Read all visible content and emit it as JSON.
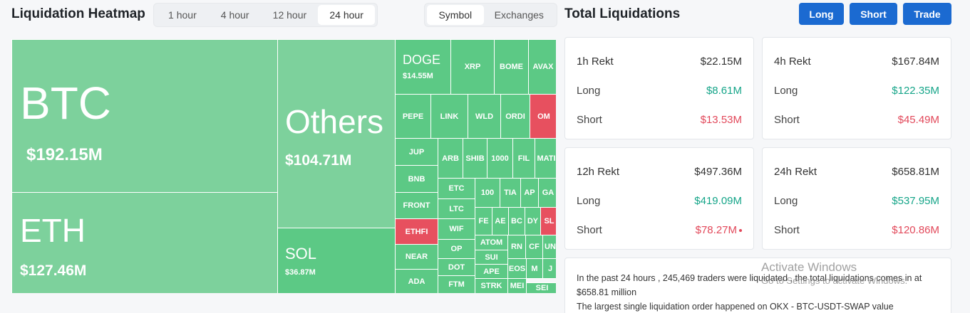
{
  "header": {
    "title": "Liquidation Heatmap",
    "time_tabs": [
      "1 hour",
      "4 hour",
      "12 hour",
      "24 hour"
    ],
    "active_time_tab": "24 hour",
    "group_tabs": [
      "Symbol",
      "Exchanges"
    ]
  },
  "heatmap": {
    "btc": {
      "name": "BTC",
      "value": "$192.15M"
    },
    "eth": {
      "name": "ETH",
      "value": "$127.46M"
    },
    "others": {
      "name": "Others",
      "value": "$104.71M"
    },
    "sol": {
      "name": "SOL",
      "value": "$36.87M"
    },
    "doge": {
      "name": "DOGE",
      "value": "$14.55M"
    },
    "small_labels": [
      "XRP",
      "BOME",
      "AVAX",
      "PEPE",
      "LINK",
      "WLD",
      "ORDI",
      "OM",
      "JUP",
      "ARB",
      "SHIB",
      "1000",
      "FIL",
      "MATI",
      "BNB",
      "ETC",
      "100",
      "TIA",
      "AP",
      "GA",
      "FRONT",
      "LTC",
      "FE",
      "AE",
      "BC",
      "DY",
      "SL",
      "ETHFI",
      "WIF",
      "OP",
      "ATOM",
      "RN",
      "CF",
      "UN",
      "NEAR",
      "SUI",
      "EOS",
      "M",
      "J",
      "DOT",
      "APE",
      "ADA",
      "FTM",
      "STRK",
      "MEI",
      "SEI"
    ]
  },
  "panel": {
    "title": "Total Liquidations",
    "buttons": {
      "long": "Long",
      "short": "Short",
      "trade": "Trade"
    },
    "cards": [
      {
        "label": "1h Rekt",
        "total": "$22.15M",
        "long_label": "Long",
        "long": "$8.61M",
        "short_label": "Short",
        "short": "$13.53M"
      },
      {
        "label": "4h Rekt",
        "total": "$167.84M",
        "long_label": "Long",
        "long": "$122.35M",
        "short_label": "Short",
        "short": "$45.49M"
      },
      {
        "label": "12h Rekt",
        "total": "$497.36M",
        "long_label": "Long",
        "long": "$419.09M",
        "short_label": "Short",
        "short": "$78.27M"
      },
      {
        "label": "24h Rekt",
        "total": "$658.81M",
        "long_label": "Long",
        "long": "$537.95M",
        "short_label": "Short",
        "short": "$120.86M"
      }
    ],
    "summary": {
      "line1": "In the past 24 hours , 245,469 traders were liquidated , the total liquidations comes in at $658.81 million",
      "line2": "The largest single liquidation order happened on OKX - BTC-USDT-SWAP value"
    }
  },
  "watermark": {
    "line1": "Activate Windows",
    "line2": "Go to Settings to activate Windows."
  },
  "colors": {
    "green": "#5cc985",
    "light_green": "#7dd19c",
    "red": "#e7505f",
    "accent": "#1b6ad1"
  }
}
